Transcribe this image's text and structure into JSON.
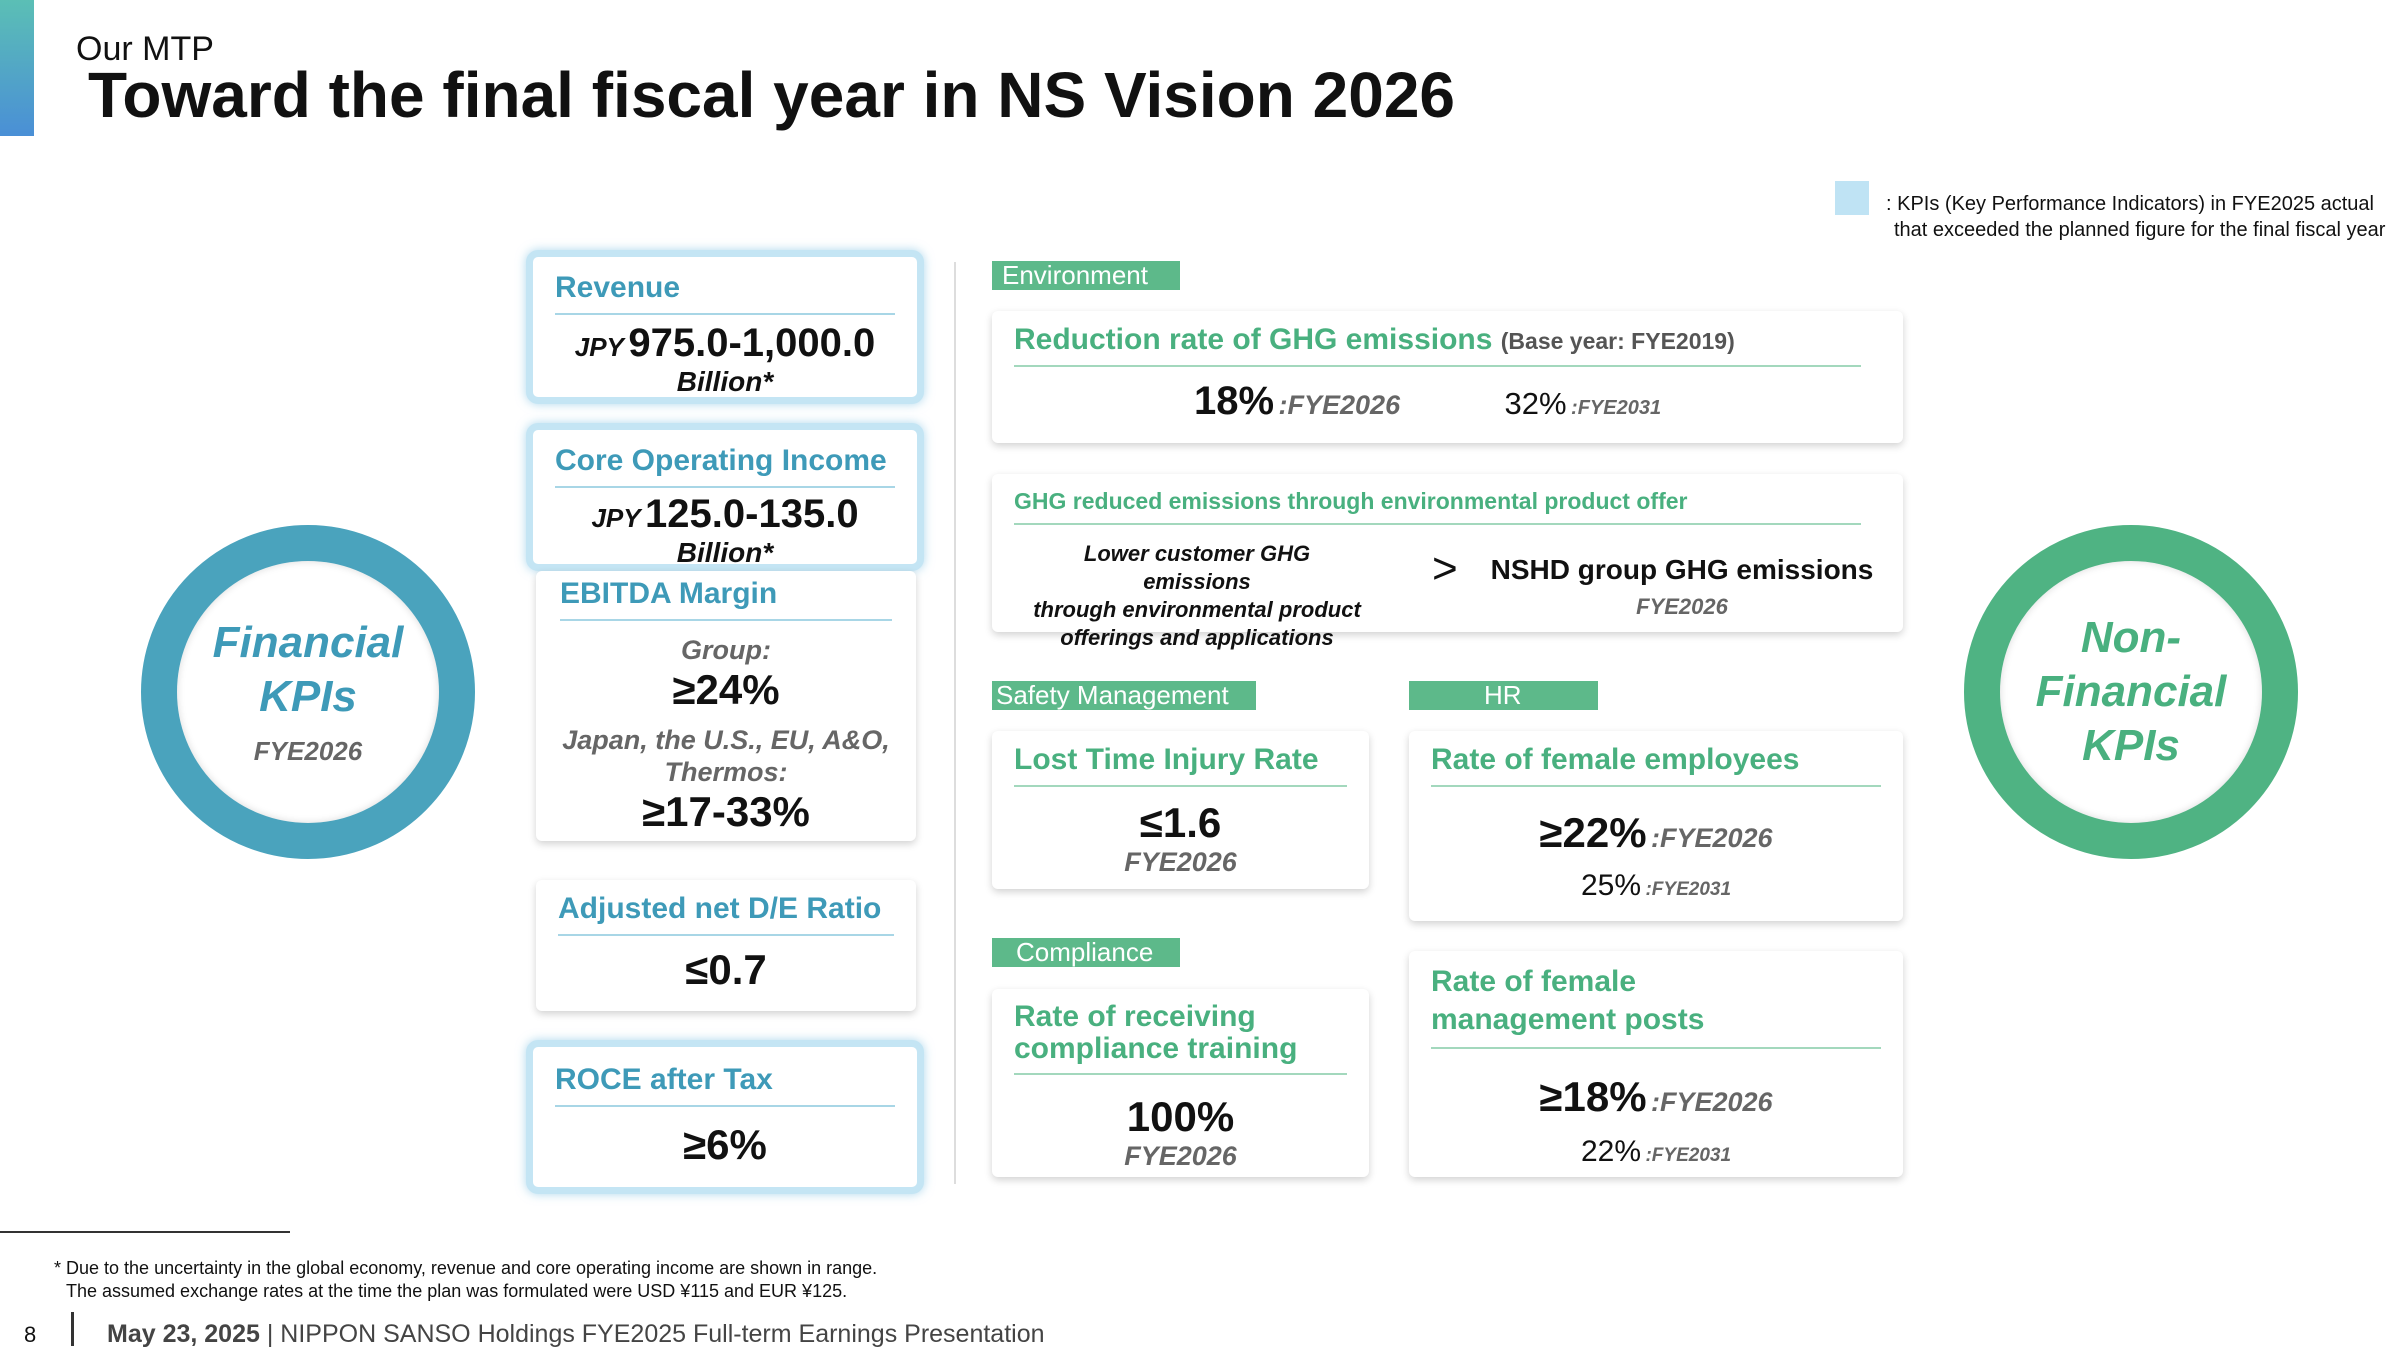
{
  "header": {
    "section": "Our MTP",
    "title": "Toward the final fiscal year in NS Vision 2026"
  },
  "legend": {
    "lines": [
      ": KPIs (Key Performance Indicators) in FYE2025 actual",
      "that exceeded the planned figure for the final fiscal year"
    ]
  },
  "financial": {
    "label_lines": [
      "Financial",
      "KPIs"
    ],
    "year": "FYE2026",
    "revenue": {
      "title": "Revenue",
      "prefix": "JPY",
      "value": "975.0-1,000.0",
      "unit": "Billion*"
    },
    "core_operating_income": {
      "title": "Core Operating Income",
      "prefix": "JPY",
      "value": "125.0-135.0",
      "unit": "Billion*"
    },
    "ebitda_margin": {
      "title": "EBITDA Margin",
      "group_label": "Group:",
      "group_value": "≥24%",
      "regions_label": "Japan, the U.S., EU, A&O, Thermos:",
      "regions_value": "≥17-33%"
    },
    "net_de_ratio": {
      "title": "Adjusted net D/E Ratio",
      "value": "≤0.7"
    },
    "roce": {
      "title": "ROCE after Tax",
      "value": "≥6%"
    }
  },
  "non_financial": {
    "label_lines": [
      "Non-",
      "Financial",
      "KPIs"
    ],
    "environment": {
      "tag": "Environment",
      "ghg_reduction": {
        "title": "Reduction rate of GHG emissions",
        "note": "(Base year: FYE2019)",
        "target": "18%",
        "target_year": ":FYE2026",
        "long_target": "32%",
        "long_year": ":FYE2031"
      },
      "ghg_reduced": {
        "title": "GHG reduced emissions through environmental product offer",
        "left_lines": [
          "Lower customer GHG emissions",
          "through environmental product",
          "offerings and applications"
        ],
        "symbol": ">",
        "right": "NSHD group GHG emissions",
        "year": "FYE2026"
      }
    },
    "safety": {
      "tag": "Safety Management",
      "title": "Lost Time Injury Rate",
      "value": "≤1.6",
      "year": "FYE2026"
    },
    "compliance": {
      "tag": "Compliance",
      "title_lines": [
        "Rate of receiving",
        "compliance training"
      ],
      "value": "100%",
      "year": "FYE2026"
    },
    "hr": {
      "tag": "HR",
      "female_employees": {
        "title": "Rate of female employees",
        "target": "≥22%",
        "target_year": ":FYE2026",
        "long_target": "25%",
        "long_year": ":FYE2031"
      },
      "female_management": {
        "title_lines": [
          "Rate of female",
          "management posts"
        ],
        "target": "≥18%",
        "target_year": ":FYE2026",
        "long_target": "22%",
        "long_year": ":FYE2031"
      }
    }
  },
  "footnote": {
    "lines": [
      "* Due to the uncertainty in the global economy, revenue and core operating income are shown in range.",
      "The assumed exchange rates at the time the plan was formulated were USD ¥115 and EUR ¥125."
    ]
  },
  "footer": {
    "page": "8",
    "date": "May 23, 2025",
    "text": "| NIPPON SANSO Holdings FYE2025 Full-term Earnings Presentation"
  }
}
